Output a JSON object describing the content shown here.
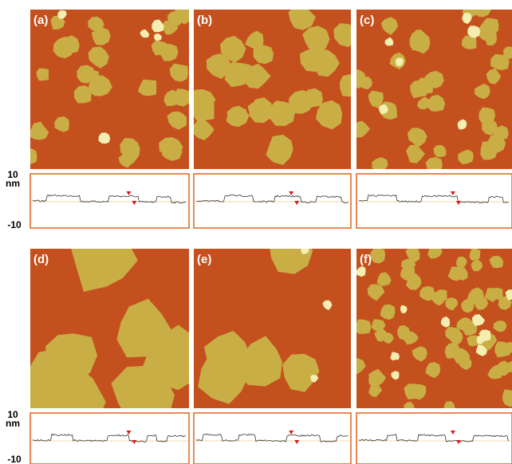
{
  "rows": [
    {
      "axis": {
        "top": "10",
        "unit": "nm",
        "bottom": "-10"
      },
      "panels": [
        {
          "label": "(a)"
        },
        {
          "label": "(b)"
        },
        {
          "label": "(c)"
        }
      ]
    },
    {
      "axis": {
        "top": "10",
        "unit": "nm",
        "bottom": "-10"
      },
      "panels": [
        {
          "label": "(d)"
        },
        {
          "label": "(e)"
        },
        {
          "label": "(f)"
        }
      ]
    }
  ]
}
